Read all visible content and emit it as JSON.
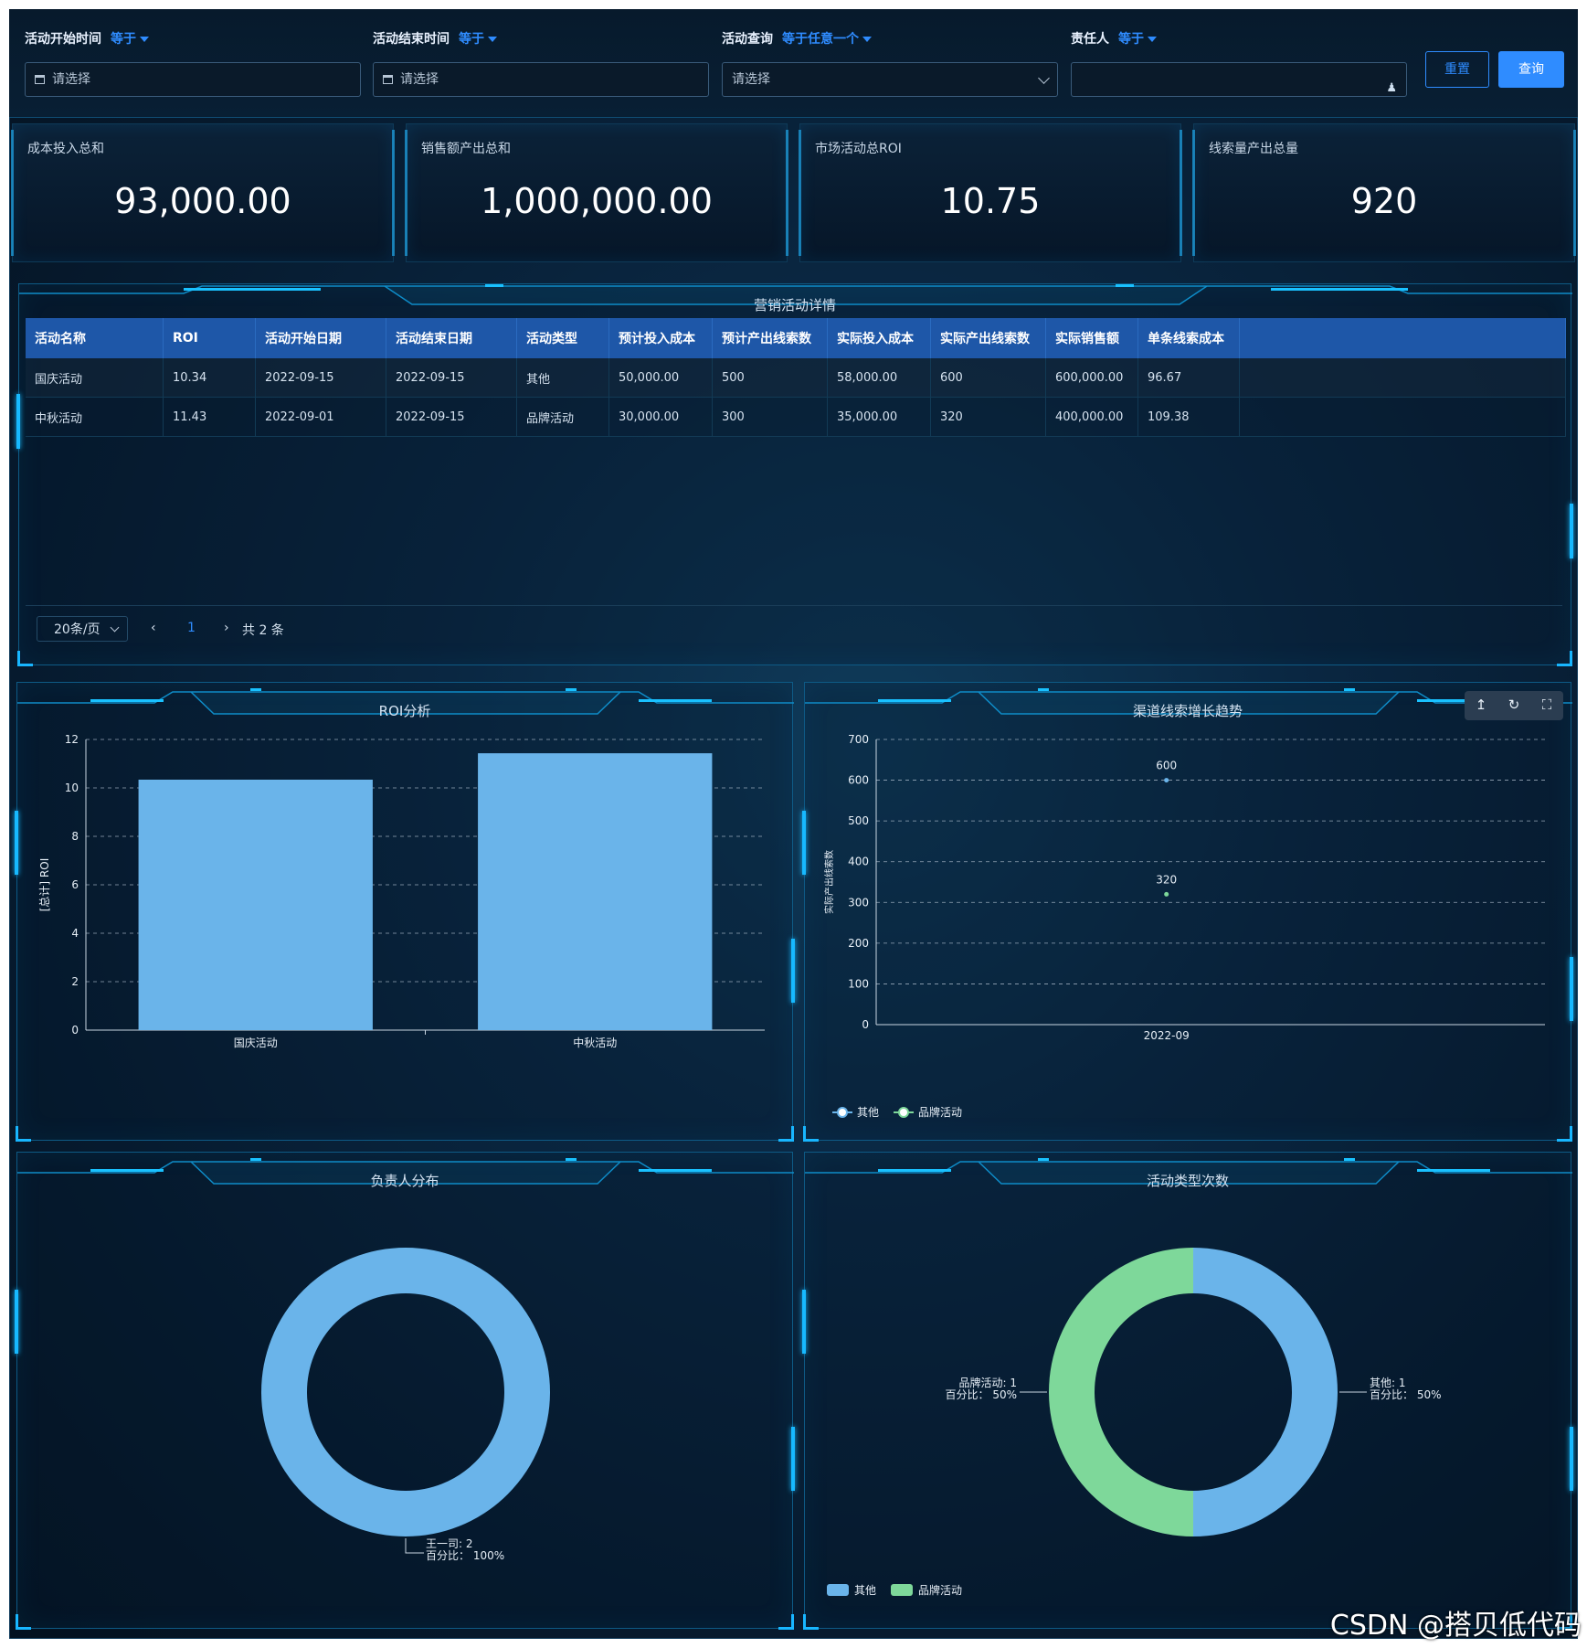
{
  "filters": [
    {
      "label": "活动开始时间",
      "op": "等于",
      "placeholder": "请选择",
      "kind": "date"
    },
    {
      "label": "活动结束时间",
      "op": "等于",
      "placeholder": "请选择",
      "kind": "date"
    },
    {
      "label": "活动查询",
      "op": "等于任意一个",
      "placeholder": "请选择",
      "kind": "select"
    },
    {
      "label": "责任人",
      "op": "等于",
      "placeholder": "",
      "kind": "user"
    }
  ],
  "buttons": {
    "reset": "重置",
    "query": "查询"
  },
  "kpis": [
    {
      "title": "成本投入总和",
      "value": "93,000.00"
    },
    {
      "title": "销售额产出总和",
      "value": "1,000,000.00"
    },
    {
      "title": "市场活动总ROI",
      "value": "10.75"
    },
    {
      "title": "线索量产出总量",
      "value": "920"
    }
  ],
  "table": {
    "title": "营销活动详情",
    "headers": [
      "活动名称",
      "ROI",
      "活动开始日期",
      "活动结束日期",
      "活动类型",
      "预计投入成本",
      "预计产出线索数",
      "实际投入成本",
      "实际产出线索数",
      "实际销售额",
      "单条线索成本"
    ],
    "rows": [
      [
        "国庆活动",
        "10.34",
        "2022-09-15",
        "2022-09-15",
        "其他",
        "50,000.00",
        "500",
        "58,000.00",
        "600",
        "600,000.00",
        "96.67"
      ],
      [
        "中秋活动",
        "11.43",
        "2022-09-01",
        "2022-09-15",
        "品牌活动",
        "30,000.00",
        "300",
        "35,000.00",
        "320",
        "400,000.00",
        "109.38"
      ]
    ],
    "pager": {
      "page_size": "20条/页",
      "current": "1",
      "total": "共 2 条"
    }
  },
  "chart_data": [
    {
      "type": "bar",
      "title": "ROI分析",
      "categories": [
        "国庆活动",
        "中秋活动"
      ],
      "values": [
        10.34,
        11.43
      ],
      "ylabel": "[总计] ROI",
      "ylim": [
        0,
        12
      ],
      "yticks": [
        0,
        2,
        4,
        6,
        8,
        10,
        12
      ],
      "color": "#6ab4ea",
      "grid": true
    },
    {
      "type": "scatter",
      "title": "渠道线索增长趋势",
      "x": [
        "2022-09"
      ],
      "ylabel": "实际产出线索数",
      "ylim": [
        0,
        700
      ],
      "yticks": [
        0,
        100,
        200,
        300,
        400,
        500,
        600,
        700
      ],
      "series": [
        {
          "name": "其他",
          "values": [
            600
          ],
          "color": "#6ab4ea"
        },
        {
          "name": "品牌活动",
          "values": [
            320
          ],
          "color": "#7ed89a"
        }
      ],
      "legend": "bottom-left",
      "grid": true
    },
    {
      "type": "pie",
      "title": "负责人分布",
      "slices": [
        {
          "name": "王一司",
          "value": 2,
          "percent": "100%",
          "color": "#6ab4ea"
        }
      ],
      "label_prefix_pct": "百分比："
    },
    {
      "type": "pie",
      "title": "活动类型次数",
      "slices": [
        {
          "name": "其他",
          "value": 1,
          "percent": "50%",
          "color": "#6ab4ea"
        },
        {
          "name": "品牌活动",
          "value": 1,
          "percent": "50%",
          "color": "#7ed89a"
        }
      ],
      "label_prefix_pct": "百分比：",
      "legend": "bottom-left"
    }
  ],
  "watermark": "CSDN @搭贝低代码"
}
